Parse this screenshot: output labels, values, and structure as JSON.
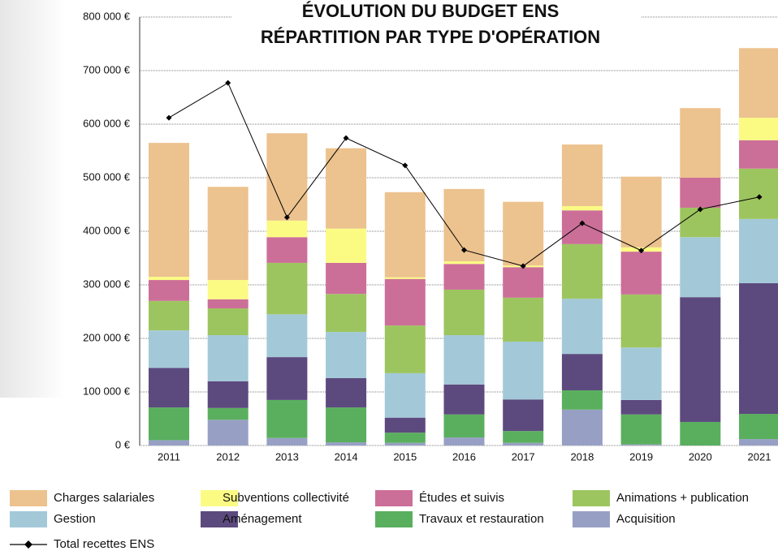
{
  "chart_data": {
    "type": "bar",
    "stacked": true,
    "title": "ÉVOLUTION DU BUDGET ENS",
    "subtitle": "RÉPARTITION PAR TYPE D'OPÉRATION",
    "categories": [
      "2011",
      "2012",
      "2013",
      "2014",
      "2015",
      "2016",
      "2017",
      "2018",
      "2019",
      "2020",
      "2021"
    ],
    "ylim": [
      0,
      800000
    ],
    "yticks": [
      {
        "value": 0,
        "label": "0 €"
      },
      {
        "value": 100000,
        "label": "100 000 €"
      },
      {
        "value": 200000,
        "label": "200 000 €"
      },
      {
        "value": 300000,
        "label": "300 000 €"
      },
      {
        "value": 400000,
        "label": "400 000 €"
      },
      {
        "value": 500000,
        "label": "500 000 €"
      },
      {
        "value": 600000,
        "label": "600 000 €"
      },
      {
        "value": 700000,
        "label": "700 000 €"
      },
      {
        "value": 800000,
        "label": "800 000 €"
      }
    ],
    "grid": true,
    "series": [
      {
        "name": "Charges salariales",
        "color": "#ecc28e",
        "values": [
          250000,
          174000,
          163000,
          150000,
          159000,
          135000,
          119000,
          115000,
          132000,
          130000,
          130000
        ]
      },
      {
        "name": "Subventions collectivité",
        "color": "#fbfb84",
        "values": [
          6000,
          36000,
          31000,
          64000,
          3000,
          5000,
          3000,
          8000,
          8000,
          0,
          42000
        ]
      },
      {
        "name": "Études et suivis",
        "color": "#cc6f98",
        "values": [
          39000,
          17000,
          48000,
          58000,
          87000,
          48000,
          57000,
          63000,
          80000,
          56000,
          53000
        ]
      },
      {
        "name": "Animations + publication",
        "color": "#9dc55f",
        "values": [
          55000,
          50000,
          96000,
          71000,
          89000,
          85000,
          82000,
          102000,
          99000,
          55000,
          94000
        ]
      },
      {
        "name": "Gestion",
        "color": "#a3c9d8",
        "values": [
          70000,
          86000,
          80000,
          86000,
          83000,
          92000,
          108000,
          103000,
          98000,
          112000,
          120000
        ]
      },
      {
        "name": "Aménagement",
        "color": "#5c4a7e",
        "values": [
          74000,
          50000,
          80000,
          55000,
          28000,
          56000,
          59000,
          68000,
          27000,
          233000,
          244000
        ]
      },
      {
        "name": "Travaux et restauration",
        "color": "#5aaf5e",
        "values": [
          61000,
          22000,
          71000,
          65000,
          19000,
          43000,
          22000,
          36000,
          56000,
          44000,
          47000
        ]
      },
      {
        "name": "Acquisition",
        "color": "#97a0c4",
        "values": [
          10000,
          48000,
          14000,
          6000,
          5000,
          15000,
          5000,
          67000,
          2000,
          0,
          12000
        ]
      },
      {
        "name": "Total recettes ENS",
        "type": "line",
        "color": "#000000",
        "values": [
          612000,
          677000,
          426000,
          574000,
          523000,
          365000,
          335000,
          415000,
          364000,
          441000,
          464000
        ]
      }
    ]
  }
}
